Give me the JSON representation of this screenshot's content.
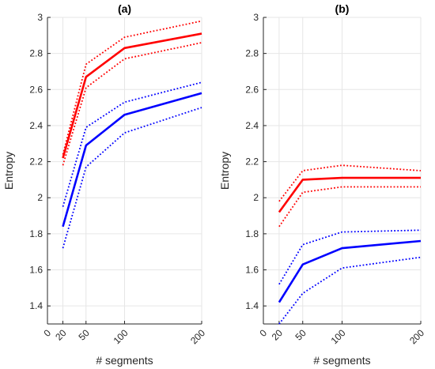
{
  "chart_data": [
    {
      "type": "line",
      "title": "(a)",
      "xlabel": "# segments",
      "ylabel": "Entropy",
      "xlim": [
        0,
        200
      ],
      "ylim": [
        1.3,
        3.0
      ],
      "x_ticks": [
        0,
        20,
        50,
        100,
        200
      ],
      "y_ticks": [
        1.4,
        1.6,
        1.8,
        2.0,
        2.2,
        2.4,
        2.6,
        2.8,
        3.0
      ],
      "y_tick_labels": [
        "1.4",
        "1.6",
        "1.8",
        "2",
        "2.2",
        "2.4",
        "2.6",
        "2.8",
        "3"
      ],
      "grid": true,
      "series": [
        {
          "color": "#ff0000",
          "style": "solid",
          "x": [
            20,
            50,
            100,
            200
          ],
          "values": [
            2.22,
            2.67,
            2.83,
            2.91
          ]
        },
        {
          "color": "#ff0000",
          "style": "dotted",
          "x": [
            20,
            50,
            100,
            200
          ],
          "values": [
            2.24,
            2.74,
            2.89,
            2.98
          ]
        },
        {
          "color": "#ff0000",
          "style": "dotted",
          "x": [
            20,
            50,
            100,
            200
          ],
          "values": [
            2.18,
            2.61,
            2.77,
            2.86
          ]
        },
        {
          "color": "#0000ff",
          "style": "solid",
          "x": [
            20,
            50,
            100,
            200
          ],
          "values": [
            1.84,
            2.29,
            2.46,
            2.58
          ]
        },
        {
          "color": "#0000ff",
          "style": "dotted",
          "x": [
            20,
            50,
            100,
            200
          ],
          "values": [
            1.95,
            2.39,
            2.53,
            2.64
          ]
        },
        {
          "color": "#0000ff",
          "style": "dotted",
          "x": [
            20,
            50,
            100,
            200
          ],
          "values": [
            1.72,
            2.17,
            2.36,
            2.5
          ]
        }
      ]
    },
    {
      "type": "line",
      "title": "(b)",
      "xlabel": "# segments",
      "ylabel": "Entropy",
      "xlim": [
        0,
        200
      ],
      "ylim": [
        1.3,
        3.0
      ],
      "x_ticks": [
        0,
        20,
        50,
        100,
        200
      ],
      "y_ticks": [
        1.4,
        1.6,
        1.8,
        2.0,
        2.2,
        2.4,
        2.6,
        2.8,
        3.0
      ],
      "y_tick_labels": [
        "1.4",
        "1.6",
        "1.8",
        "2",
        "2.2",
        "2.4",
        "2.6",
        "2.8",
        "3"
      ],
      "grid": true,
      "series": [
        {
          "color": "#ff0000",
          "style": "solid",
          "x": [
            20,
            50,
            100,
            200
          ],
          "values": [
            1.92,
            2.1,
            2.11,
            2.11
          ]
        },
        {
          "color": "#ff0000",
          "style": "dotted",
          "x": [
            20,
            50,
            100,
            200
          ],
          "values": [
            1.98,
            2.15,
            2.18,
            2.15
          ]
        },
        {
          "color": "#ff0000",
          "style": "dotted",
          "x": [
            20,
            50,
            100,
            200
          ],
          "values": [
            1.84,
            2.03,
            2.06,
            2.06
          ]
        },
        {
          "color": "#0000ff",
          "style": "solid",
          "x": [
            20,
            50,
            100,
            200
          ],
          "values": [
            1.42,
            1.63,
            1.72,
            1.76
          ]
        },
        {
          "color": "#0000ff",
          "style": "dotted",
          "x": [
            20,
            50,
            100,
            200
          ],
          "values": [
            1.52,
            1.74,
            1.81,
            1.82
          ]
        },
        {
          "color": "#0000ff",
          "style": "dotted",
          "x": [
            20,
            50,
            100,
            200
          ],
          "values": [
            1.3,
            1.47,
            1.61,
            1.67
          ]
        }
      ]
    }
  ]
}
